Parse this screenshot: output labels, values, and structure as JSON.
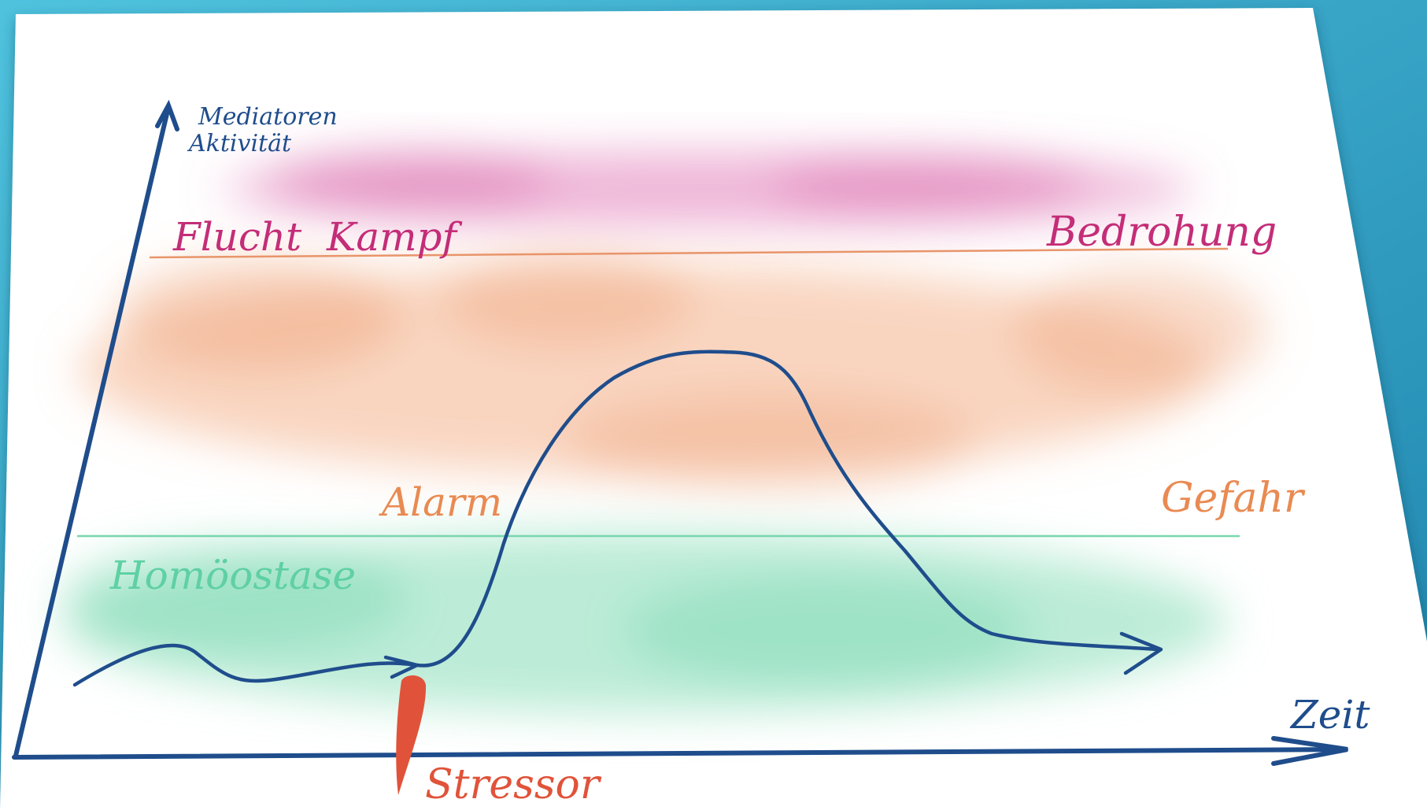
{
  "diagram": {
    "axes": {
      "y_label_line1": "Mediatoren",
      "y_label_line2": "Aktivität",
      "x_label": "Zeit"
    },
    "zones": {
      "threat_label_left": "Flucht  Kampf",
      "threat_label_right": "Bedrohung",
      "danger_label_left": "Alarm",
      "danger_label_right": "Gefahr",
      "homeostasis_label": "Homöostase"
    },
    "event": {
      "stressor_label": "Stressor"
    },
    "colors": {
      "background": "#2e9cbf",
      "paper": "#ffffff",
      "axis_and_curve": "#1f4d8c",
      "threat": "#c42d78",
      "danger": "#e98a52",
      "homeostasis": "#5fd0a3",
      "stressor": "#e0533a"
    }
  }
}
